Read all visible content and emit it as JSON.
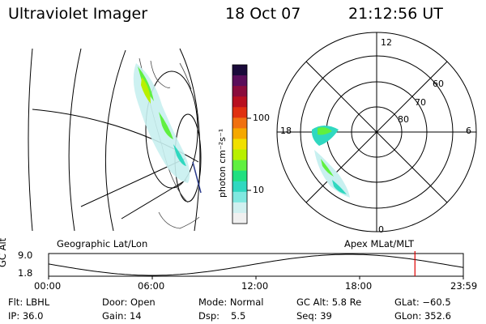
{
  "header": {
    "instrument": "Ultraviolet Imager",
    "date": "18 Oct 07",
    "time": "21:12:56 UT"
  },
  "colorbar": {
    "unit_label": "photon cm⁻²s⁻¹",
    "ticks": [
      "100",
      "10"
    ],
    "colors": [
      "#1a0a3a",
      "#5a0e5a",
      "#8a0c3c",
      "#b81020",
      "#e03010",
      "#f07010",
      "#f5a800",
      "#f0e000",
      "#b8f000",
      "#60f040",
      "#20e080",
      "#30d8c0",
      "#80e8e0",
      "#d0f0f0",
      "#f0f0f0"
    ]
  },
  "geo_panel": {
    "label": "Geographic Lat/Lon"
  },
  "polar_panel": {
    "label": "Apex MLat/MLT",
    "mlt_labels": {
      "top": "12",
      "left": "18",
      "right": "6",
      "bottom": "0"
    },
    "lat_labels": [
      "60",
      "70",
      "80"
    ]
  },
  "altitude_plot": {
    "ylabel": "GC Alt",
    "y_ticks": [
      "9.0",
      "1.8"
    ],
    "x_ticks": [
      "00:00",
      "06:00",
      "12:00",
      "18:00",
      "23:59"
    ],
    "marker_time": "21:12",
    "marker_color": "#e00000"
  },
  "status": {
    "flt": "Flt: LBHL",
    "door": "Door: Open",
    "mode": "Mode: Normal",
    "gc_alt": "GC Alt: 5.8 Re",
    "glat": "GLat: −60.5",
    "ip": "IP: 36.0",
    "gain": "Gain: 14",
    "dsp_label": "Dsp:",
    "dsp_value": "5.5",
    "seq": "Seq: 39",
    "glon": "GLon: 352.6"
  }
}
